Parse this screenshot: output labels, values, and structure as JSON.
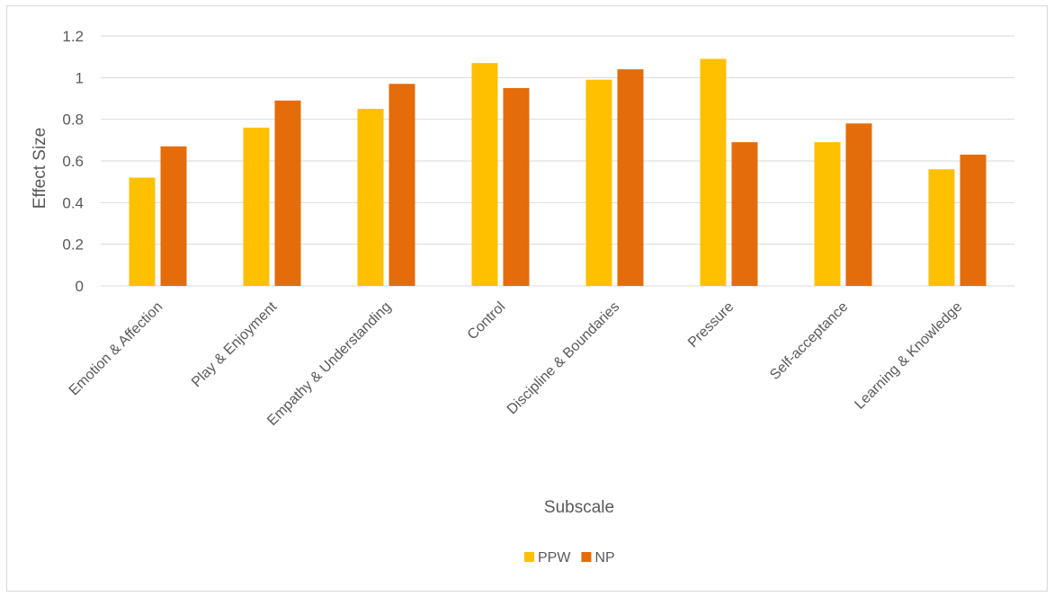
{
  "chart_data": {
    "type": "bar",
    "categories": [
      "Emotion & Affection",
      "Play & Enjoyment",
      "Empathy & Understanding",
      "Control",
      "Discipline & Boundaries",
      "Pressure",
      "Self-acceptance",
      "Learning & Knowledge"
    ],
    "series": [
      {
        "name": "PPW",
        "color": "#FFC000",
        "values": [
          0.52,
          0.76,
          0.85,
          1.07,
          0.99,
          1.09,
          0.69,
          0.56
        ]
      },
      {
        "name": "NP",
        "color": "#E46C0A",
        "values": [
          0.67,
          0.89,
          0.97,
          0.95,
          1.04,
          0.69,
          0.78,
          0.63
        ]
      }
    ],
    "xlabel": "Subscale",
    "ylabel": "Effect Size",
    "ylim": [
      0,
      1.2
    ],
    "yticks": [
      "0",
      "0.2",
      "0.4",
      "0.6",
      "0.8",
      "1",
      "1.2"
    ],
    "grid": true,
    "legend_position": "bottom"
  }
}
